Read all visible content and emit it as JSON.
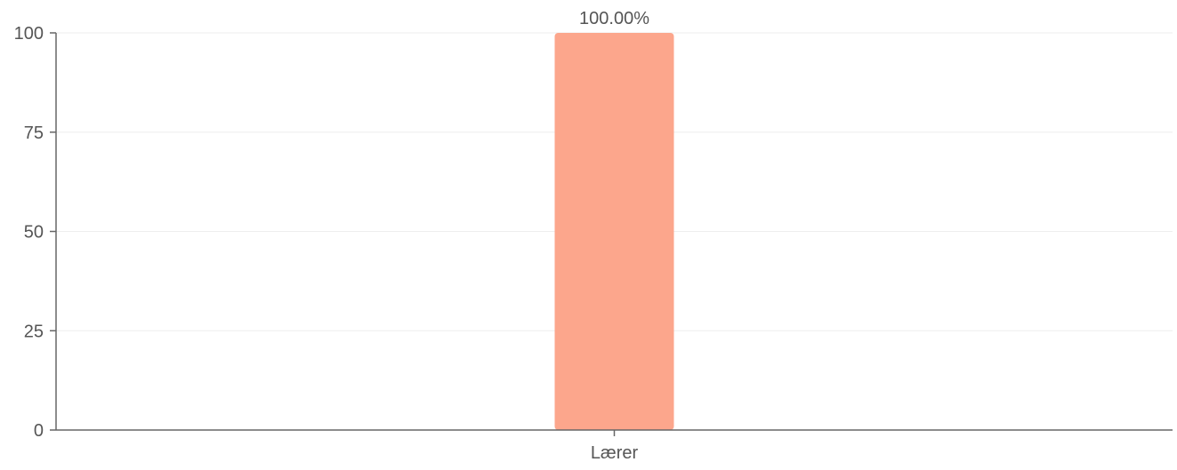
{
  "chart_data": {
    "type": "bar",
    "title": "",
    "xlabel": "",
    "ylabel": "",
    "categories": [
      "Lærer"
    ],
    "values": [
      100
    ],
    "value_labels": [
      "100.00%"
    ],
    "ylim": [
      0,
      100
    ],
    "yticks": [
      0,
      25,
      50,
      75,
      100
    ],
    "grid": true,
    "legend": "none",
    "colors": {
      "bar": "#fca68c",
      "axis": "#666666",
      "grid": "#eeeeee",
      "text": "#555555"
    }
  }
}
